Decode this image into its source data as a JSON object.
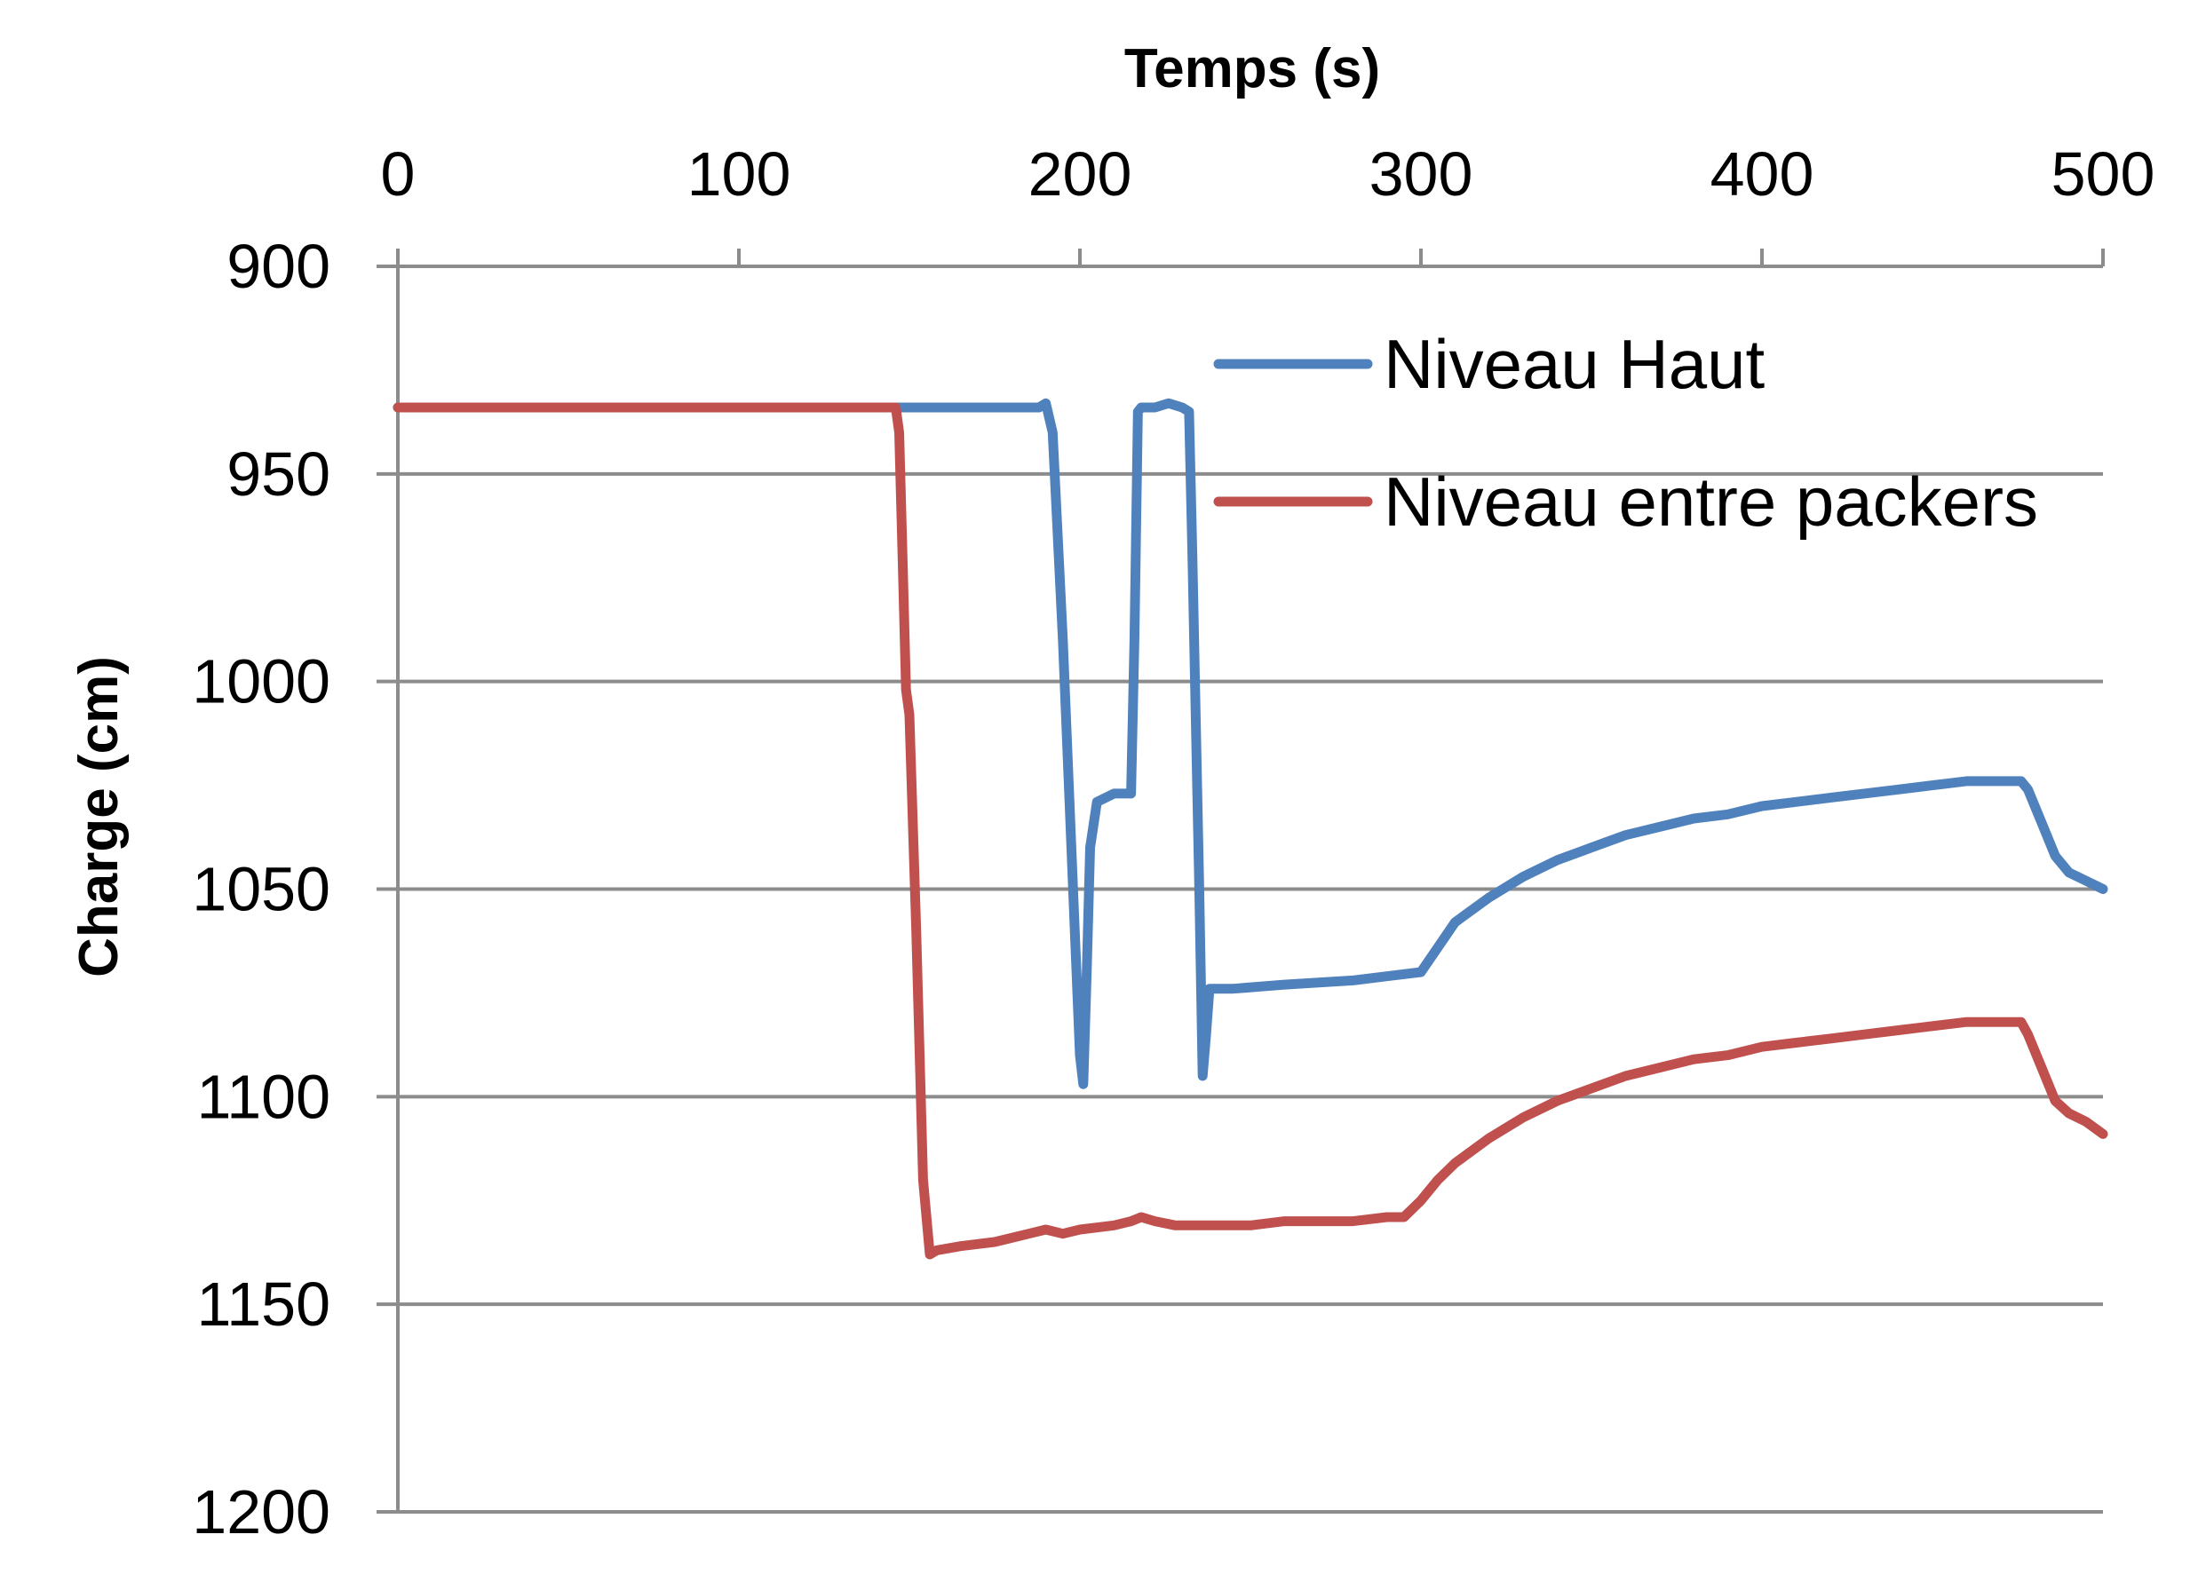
{
  "chart_data": {
    "type": "line",
    "title": "",
    "xlabel": "Temps (s)",
    "ylabel": "Charge (cm)",
    "xlim": [
      0,
      500
    ],
    "ylim": [
      900,
      1200
    ],
    "y_inverted": true,
    "x_axis_position": "top",
    "x_ticks": [
      "0",
      "100",
      "200",
      "300",
      "400",
      "500"
    ],
    "y_ticks": [
      "900",
      "950",
      "1000",
      "1050",
      "1100",
      "1150",
      "1200"
    ],
    "grid": "horizontal",
    "legend_position": "top-right",
    "series": [
      {
        "name": "Niveau Haut",
        "color": "#4F81BD",
        "points": [
          [
            0,
            934
          ],
          [
            60,
            934
          ],
          [
            120,
            934
          ],
          [
            150,
            934
          ],
          [
            170,
            934
          ],
          [
            188,
            934
          ],
          [
            190,
            933
          ],
          [
            192,
            940
          ],
          [
            195,
            990
          ],
          [
            198,
            1050
          ],
          [
            200,
            1090
          ],
          [
            201,
            1097
          ],
          [
            202,
            1070
          ],
          [
            203,
            1040
          ],
          [
            205,
            1029
          ],
          [
            210,
            1027
          ],
          [
            215,
            1027
          ],
          [
            216,
            990
          ],
          [
            217,
            935
          ],
          [
            218,
            934
          ],
          [
            222,
            934
          ],
          [
            226,
            933
          ],
          [
            230,
            934
          ],
          [
            232,
            935
          ],
          [
            233,
            970
          ],
          [
            235,
            1050
          ],
          [
            236,
            1095
          ],
          [
            237,
            1085
          ],
          [
            238,
            1074
          ],
          [
            245,
            1074
          ],
          [
            260,
            1073
          ],
          [
            280,
            1072
          ],
          [
            290,
            1071
          ],
          [
            300,
            1070
          ],
          [
            305,
            1064
          ],
          [
            310,
            1058
          ],
          [
            320,
            1052
          ],
          [
            330,
            1047
          ],
          [
            340,
            1043
          ],
          [
            350,
            1040
          ],
          [
            360,
            1037
          ],
          [
            370,
            1035
          ],
          [
            380,
            1033
          ],
          [
            390,
            1032
          ],
          [
            400,
            1030
          ],
          [
            410,
            1029
          ],
          [
            420,
            1028
          ],
          [
            430,
            1027
          ],
          [
            440,
            1026
          ],
          [
            450,
            1025
          ],
          [
            460,
            1024
          ],
          [
            470,
            1024
          ],
          [
            476,
            1024
          ],
          [
            478,
            1026
          ],
          [
            482,
            1034
          ],
          [
            486,
            1042
          ],
          [
            490,
            1046
          ],
          [
            495,
            1048
          ],
          [
            500,
            1050
          ]
        ]
      },
      {
        "name": "Niveau entre packers",
        "color": "#C0504D",
        "points": [
          [
            0,
            934
          ],
          [
            50,
            934
          ],
          [
            100,
            934
          ],
          [
            140,
            934
          ],
          [
            146,
            934
          ],
          [
            147,
            940
          ],
          [
            148,
            970
          ],
          [
            149,
            1002
          ],
          [
            150,
            1008
          ],
          [
            152,
            1060
          ],
          [
            154,
            1120
          ],
          [
            156,
            1138
          ],
          [
            158,
            1137
          ],
          [
            165,
            1136
          ],
          [
            175,
            1135
          ],
          [
            185,
            1133
          ],
          [
            190,
            1132
          ],
          [
            195,
            1133
          ],
          [
            200,
            1132
          ],
          [
            210,
            1131
          ],
          [
            215,
            1130
          ],
          [
            218,
            1129
          ],
          [
            222,
            1130
          ],
          [
            228,
            1131
          ],
          [
            235,
            1131
          ],
          [
            240,
            1131
          ],
          [
            250,
            1131
          ],
          [
            260,
            1130
          ],
          [
            270,
            1130
          ],
          [
            280,
            1130
          ],
          [
            290,
            1129
          ],
          [
            295,
            1129
          ],
          [
            300,
            1125
          ],
          [
            305,
            1120
          ],
          [
            310,
            1116
          ],
          [
            320,
            1110
          ],
          [
            330,
            1105
          ],
          [
            340,
            1101
          ],
          [
            350,
            1098
          ],
          [
            360,
            1095
          ],
          [
            370,
            1093
          ],
          [
            380,
            1091
          ],
          [
            390,
            1090
          ],
          [
            400,
            1088
          ],
          [
            410,
            1087
          ],
          [
            420,
            1086
          ],
          [
            430,
            1085
          ],
          [
            440,
            1084
          ],
          [
            450,
            1083
          ],
          [
            460,
            1082
          ],
          [
            470,
            1082
          ],
          [
            476,
            1082
          ],
          [
            478,
            1085
          ],
          [
            482,
            1093
          ],
          [
            486,
            1101
          ],
          [
            490,
            1104
          ],
          [
            495,
            1106
          ],
          [
            500,
            1109
          ]
        ]
      }
    ]
  }
}
